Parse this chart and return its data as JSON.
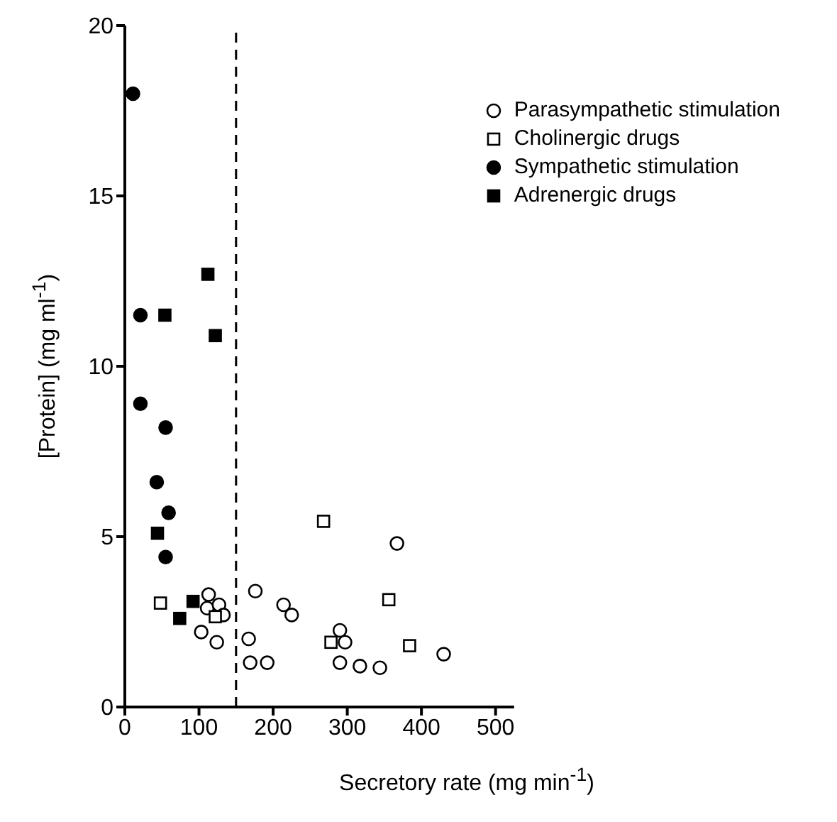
{
  "chart_data": {
    "type": "scatter",
    "xlabel": "Secretory rate (mg min$^{-1}$)",
    "ylabel": "[Protein] (mg ml$^{-1}$)",
    "xlim": [
      0,
      525
    ],
    "xticks": [
      0,
      100,
      200,
      300,
      400,
      500
    ],
    "ylim": [
      0,
      20
    ],
    "yticks": [
      0,
      5,
      10,
      15,
      20
    ],
    "grid": false,
    "legend": "top right",
    "ref_lines": [
      {
        "axis": "x",
        "value": 150,
        "line_style": "dashed",
        "color": "#000000"
      }
    ],
    "series": [
      {
        "name": "Parasympathetic stimulation",
        "color": "#ffffff",
        "marker": "circle",
        "x": [
          113,
          111,
          127,
          133,
          103,
          124,
          167,
          169,
          192,
          176,
          214,
          225,
          290,
          297,
          290,
          317,
          344,
          367,
          430
        ],
        "values": [
          3.3,
          2.9,
          3.0,
          2.7,
          2.2,
          1.9,
          2.0,
          1.3,
          1.3,
          3.4,
          3.0,
          2.7,
          2.25,
          1.9,
          1.3,
          1.2,
          1.15,
          4.8,
          1.55
        ]
      },
      {
        "name": "Cholinergic drugs",
        "color": "#ffffff",
        "marker": "square",
        "x": [
          48,
          122,
          268,
          278,
          356,
          384
        ],
        "values": [
          3.05,
          2.65,
          5.45,
          1.9,
          3.15,
          1.8
        ]
      },
      {
        "name": "Sympathetic stimulation",
        "color": "#000000",
        "marker": "circle",
        "x": [
          11,
          21,
          21,
          55,
          43,
          59,
          55
        ],
        "values": [
          18.0,
          11.5,
          8.9,
          8.2,
          6.6,
          5.7,
          4.4
        ]
      },
      {
        "name": "Adrenergic drugs",
        "color": "#000000",
        "marker": "square",
        "x": [
          54,
          112,
          122,
          44,
          92,
          74
        ],
        "values": [
          11.5,
          12.7,
          10.9,
          5.1,
          3.1,
          2.6
        ]
      }
    ]
  }
}
